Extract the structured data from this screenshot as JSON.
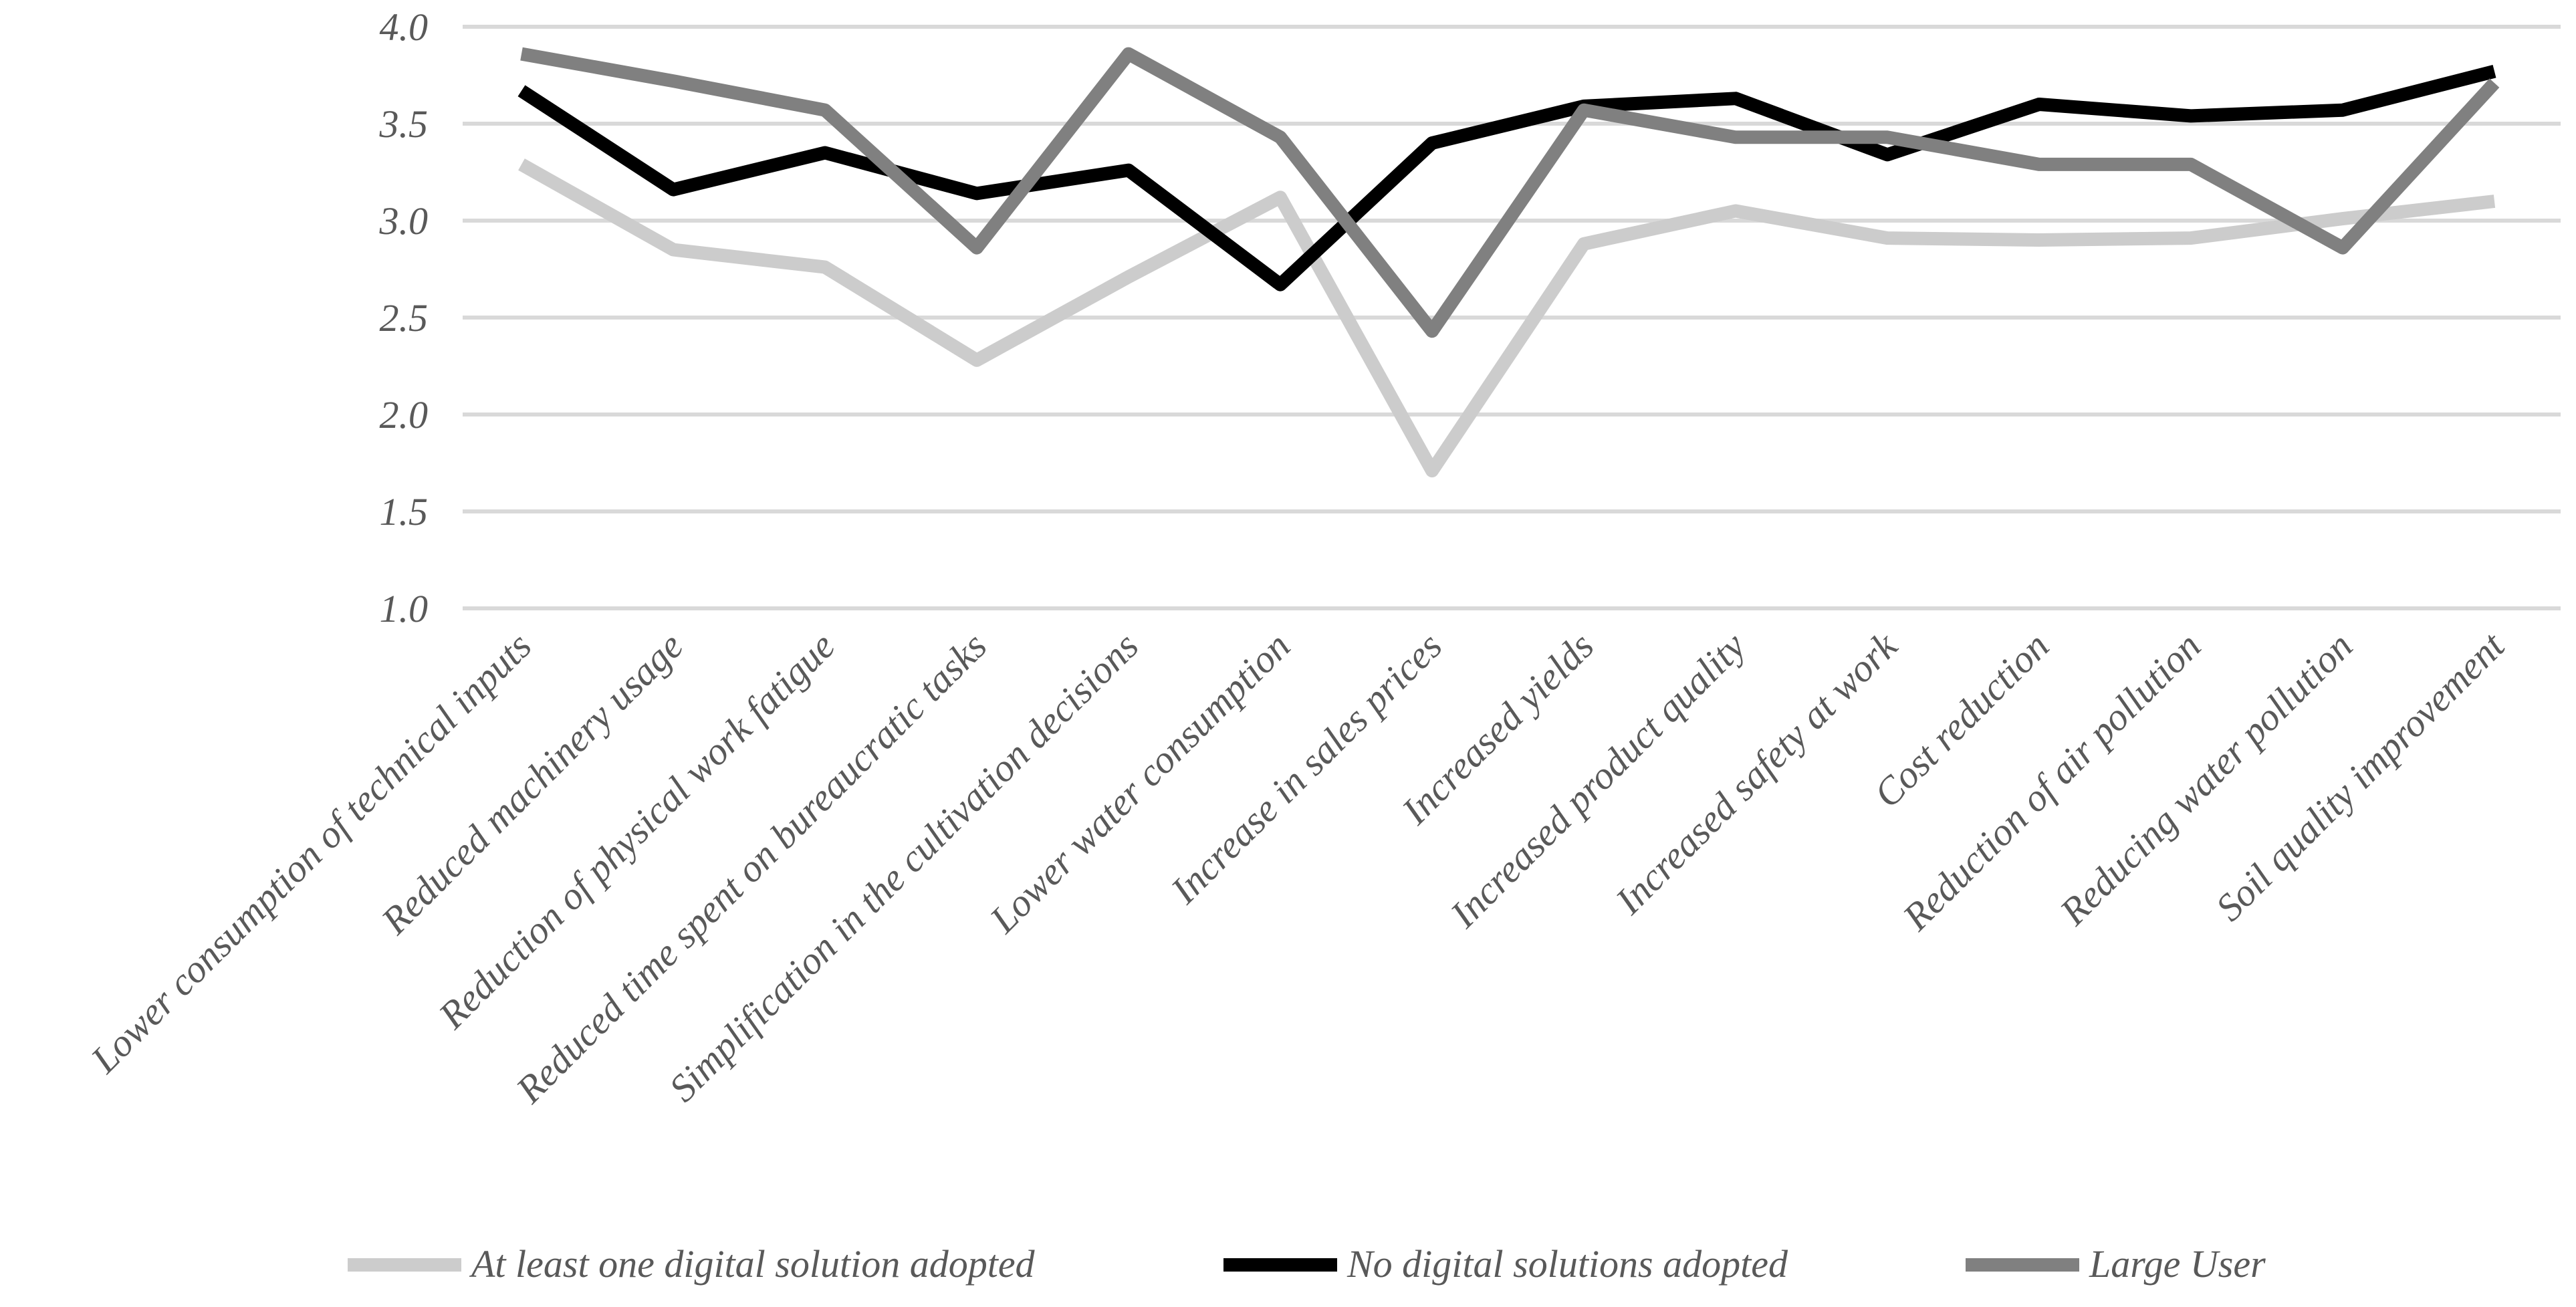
{
  "chart_data": {
    "type": "line",
    "title": "",
    "xlabel": "",
    "ylabel": "",
    "ylim": [
      1.0,
      4.0
    ],
    "yticks": [
      "1.0",
      "1.5",
      "2.0",
      "2.5",
      "3.0",
      "3.5",
      "4.0"
    ],
    "ytick_values": [
      1.0,
      1.5,
      2.0,
      2.5,
      3.0,
      3.5,
      4.0
    ],
    "grid": true,
    "legend_position": "bottom",
    "categories": [
      "Lower consumption of technical inputs",
      "Reduced machinery usage",
      "Reduction of physical work fatigue",
      "Reduced time spent on bureaucratic tasks",
      "Simplification in the cultivation decisions",
      "Lower water consumption",
      "Increase in sales prices",
      "Increased yields",
      "Increased product quality",
      "Increased safety at work",
      "Cost reduction",
      "Reduction of air pollution",
      "Reducing water pollution",
      "Soil quality improvement"
    ],
    "series": [
      {
        "name": "At least one digital solution adopted",
        "color": "#cccccc",
        "values": [
          3.29,
          2.85,
          2.76,
          2.28,
          2.71,
          3.12,
          1.71,
          2.88,
          3.05,
          2.91,
          2.9,
          2.91,
          3.01,
          3.1
        ]
      },
      {
        "name": "No digital solutions adopted",
        "color": "#000000",
        "values": [
          3.67,
          3.16,
          3.35,
          3.14,
          3.26,
          2.67,
          3.4,
          3.59,
          3.63,
          3.34,
          3.6,
          3.54,
          3.57,
          3.77
        ]
      },
      {
        "name": "Large User",
        "color": "#808080",
        "values": [
          3.86,
          3.72,
          3.57,
          2.86,
          3.86,
          3.43,
          2.43,
          3.57,
          3.43,
          3.43,
          3.29,
          3.29,
          2.86,
          3.71
        ]
      }
    ]
  }
}
